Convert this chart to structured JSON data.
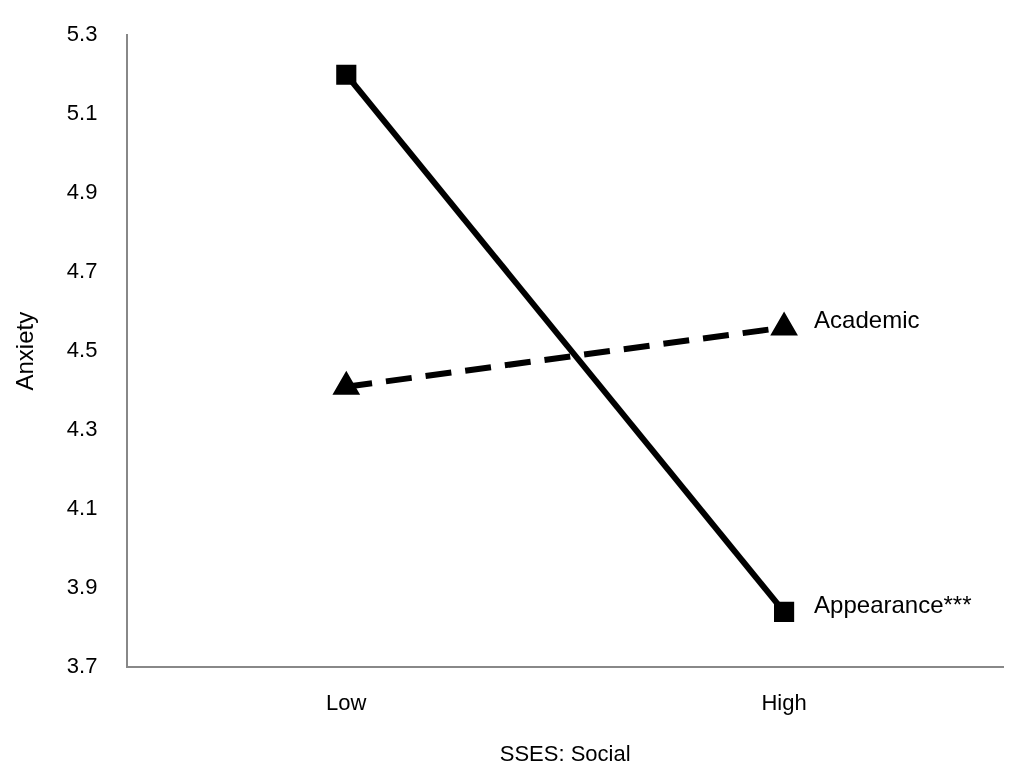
{
  "chart_data": {
    "type": "line",
    "xlabel": "SSES: Social",
    "ylabel": "Anxiety",
    "categories": [
      "Low",
      "High"
    ],
    "ylim": [
      3.7,
      5.3
    ],
    "yticks": [
      3.7,
      3.9,
      4.1,
      4.3,
      4.5,
      4.7,
      4.9,
      5.1,
      5.3
    ],
    "grid": false,
    "legend": false,
    "series": [
      {
        "name": "Appearance***",
        "color": "#000000",
        "values": [
          5.2,
          3.84
        ],
        "marker": "square",
        "line_style": "solid"
      },
      {
        "name": "Academic",
        "color": "#000000",
        "values": [
          4.41,
          4.56
        ],
        "marker": "triangle",
        "line_style": "dashed"
      }
    ]
  }
}
